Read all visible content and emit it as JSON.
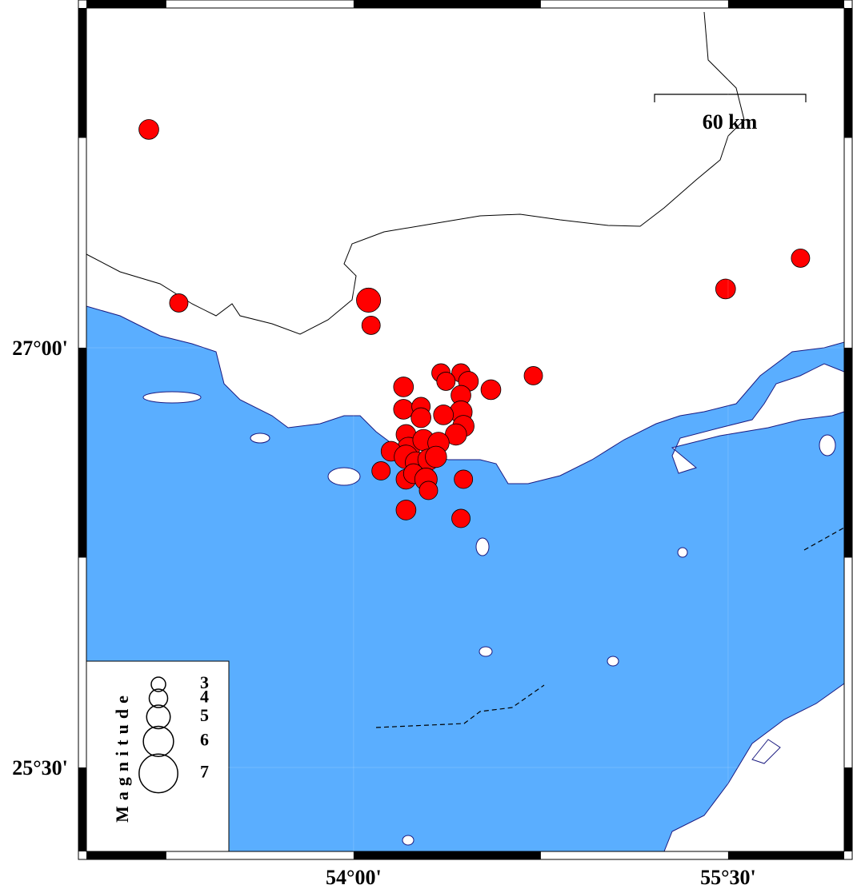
{
  "map": {
    "lon_range": [
      52.93,
      55.965
    ],
    "lat_range": [
      25.2,
      28.214
    ],
    "lon_ticks": [
      {
        "value": 54,
        "label": "54°00'"
      },
      {
        "value": 55.5,
        "label": "55°30'"
      }
    ],
    "lat_ticks": [
      {
        "value": 27,
        "label": "27°00'"
      },
      {
        "value": 25.5,
        "label": "25°30'"
      }
    ],
    "scale_bar": {
      "label": "60 km"
    },
    "event_color": "#ff0000",
    "events": [
      {
        "lon": 53.18,
        "lat": 27.78,
        "magnitude": 4.3
      },
      {
        "lon": 53.3,
        "lat": 27.16,
        "magnitude": 4.0
      },
      {
        "lon": 54.06,
        "lat": 27.17,
        "magnitude": 5.1
      },
      {
        "lon": 54.07,
        "lat": 27.08,
        "magnitude": 4.0
      },
      {
        "lon": 55.49,
        "lat": 27.21,
        "magnitude": 4.3
      },
      {
        "lon": 55.79,
        "lat": 27.32,
        "magnitude": 4.0
      },
      {
        "lon": 54.72,
        "lat": 26.9,
        "magnitude": 4.0
      },
      {
        "lon": 54.55,
        "lat": 26.85,
        "magnitude": 4.3
      },
      {
        "lon": 54.2,
        "lat": 26.86,
        "magnitude": 4.3
      },
      {
        "lon": 54.2,
        "lat": 26.78,
        "magnitude": 4.3
      },
      {
        "lon": 54.35,
        "lat": 26.91,
        "magnitude": 4.0
      },
      {
        "lon": 54.43,
        "lat": 26.91,
        "magnitude": 4.0
      },
      {
        "lon": 54.46,
        "lat": 26.88,
        "magnitude": 4.3
      },
      {
        "lon": 54.43,
        "lat": 26.83,
        "magnitude": 4.3
      },
      {
        "lon": 54.37,
        "lat": 26.88,
        "magnitude": 4.0
      },
      {
        "lon": 54.27,
        "lat": 26.79,
        "magnitude": 4.0
      },
      {
        "lon": 54.27,
        "lat": 26.75,
        "magnitude": 4.3
      },
      {
        "lon": 54.43,
        "lat": 26.77,
        "magnitude": 4.8
      },
      {
        "lon": 54.44,
        "lat": 26.72,
        "magnitude": 4.6
      },
      {
        "lon": 54.36,
        "lat": 26.76,
        "magnitude": 4.3
      },
      {
        "lon": 54.41,
        "lat": 26.69,
        "magnitude": 4.6
      },
      {
        "lon": 54.21,
        "lat": 26.69,
        "magnitude": 4.3
      },
      {
        "lon": 54.22,
        "lat": 26.64,
        "magnitude": 4.8
      },
      {
        "lon": 54.28,
        "lat": 26.67,
        "magnitude": 4.6
      },
      {
        "lon": 54.34,
        "lat": 26.66,
        "magnitude": 4.6
      },
      {
        "lon": 54.15,
        "lat": 26.63,
        "magnitude": 4.3
      },
      {
        "lon": 54.21,
        "lat": 26.61,
        "magnitude": 5.0
      },
      {
        "lon": 54.25,
        "lat": 26.59,
        "magnitude": 4.6
      },
      {
        "lon": 54.3,
        "lat": 26.6,
        "magnitude": 4.6
      },
      {
        "lon": 54.33,
        "lat": 26.61,
        "magnitude": 4.6
      },
      {
        "lon": 54.11,
        "lat": 26.56,
        "magnitude": 4.0
      },
      {
        "lon": 54.21,
        "lat": 26.53,
        "magnitude": 4.3
      },
      {
        "lon": 54.24,
        "lat": 26.55,
        "magnitude": 4.3
      },
      {
        "lon": 54.29,
        "lat": 26.53,
        "magnitude": 4.8
      },
      {
        "lon": 54.3,
        "lat": 26.49,
        "magnitude": 4.0
      },
      {
        "lon": 54.44,
        "lat": 26.53,
        "magnitude": 4.0
      },
      {
        "lon": 54.21,
        "lat": 26.42,
        "magnitude": 4.3
      },
      {
        "lon": 54.43,
        "lat": 26.39,
        "magnitude": 4.0
      }
    ],
    "legend": {
      "title": "Magnitude",
      "items": [
        3,
        4,
        5,
        6,
        7
      ]
    }
  }
}
